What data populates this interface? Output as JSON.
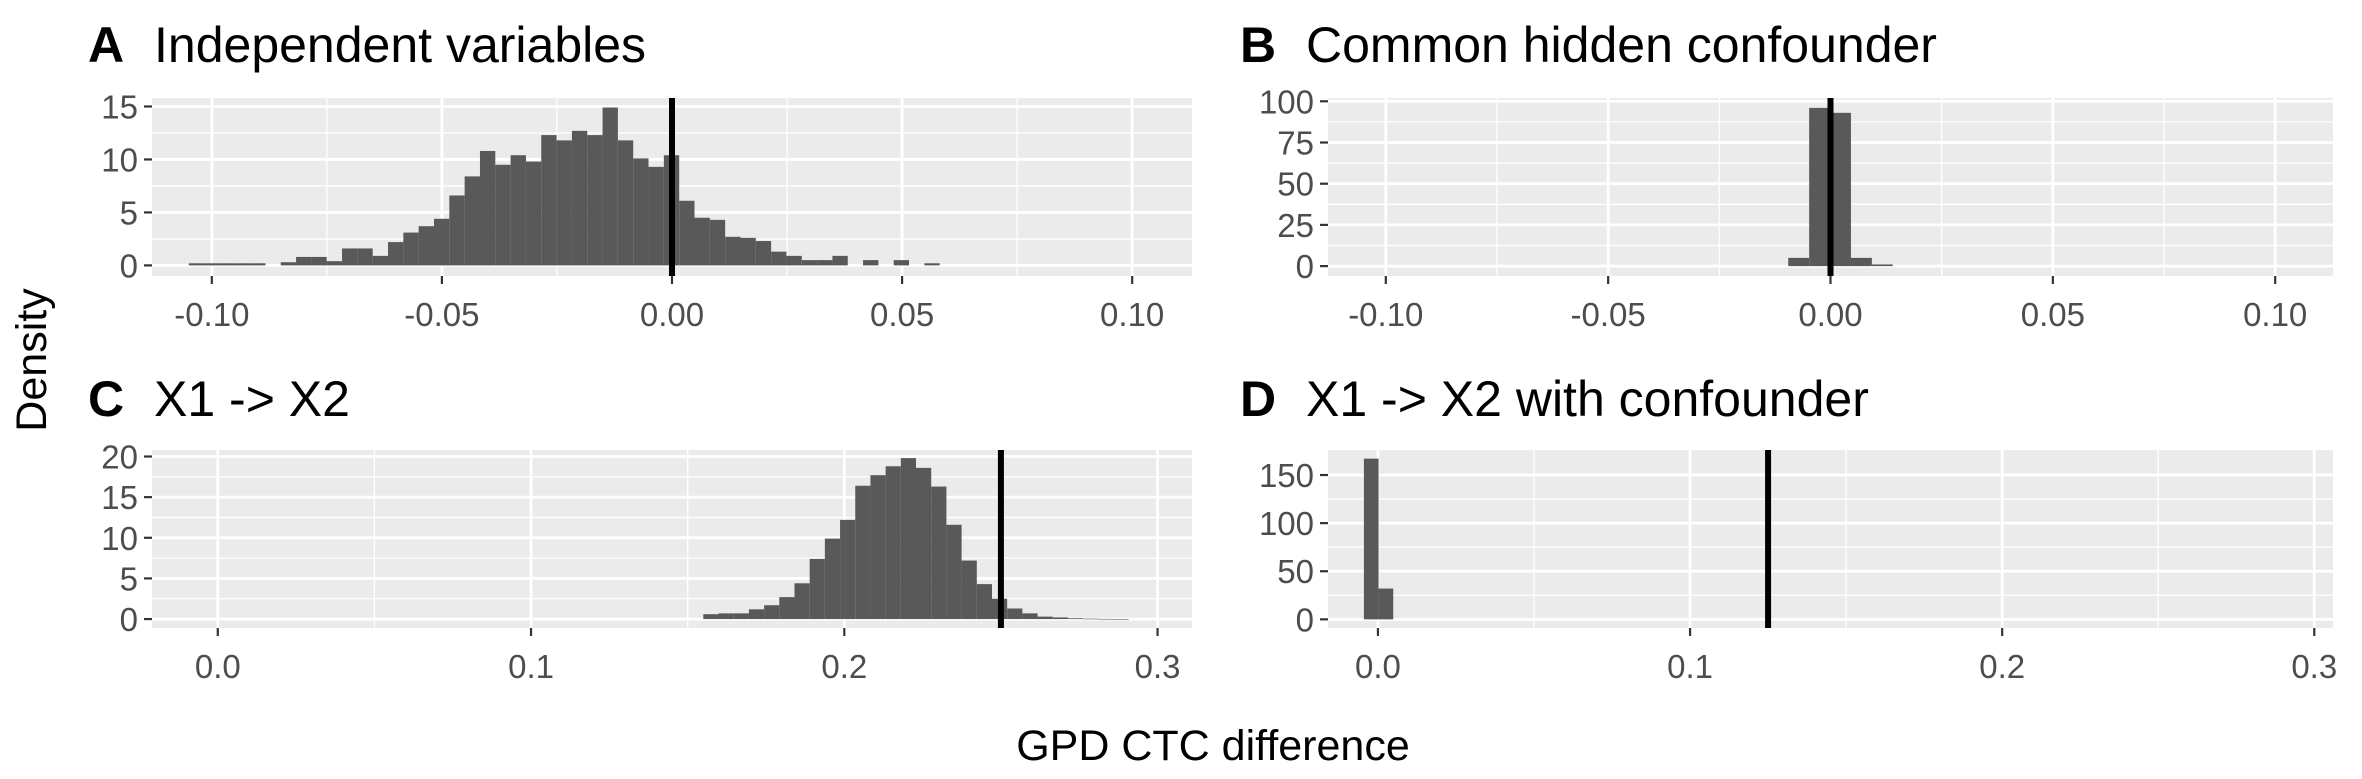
{
  "figure": {
    "ylabel": "Density",
    "xlabel": "GPD CTC difference"
  },
  "colors": {
    "panel_bg": "#ebebeb",
    "grid": "#ffffff",
    "bar": "#595959",
    "vline": "#000000",
    "tick_text": "#4d4d4d"
  },
  "chart_data": [
    {
      "panel": "A",
      "title": "Independent variables",
      "type": "bar",
      "xlim": [
        -0.113,
        0.113
      ],
      "ylim": [
        -1.0,
        15.8
      ],
      "xticks": [
        -0.1,
        -0.05,
        0.0,
        0.05,
        0.1
      ],
      "xtick_labels": [
        "-0.10",
        "-0.05",
        "0.00",
        "0.05",
        "0.10"
      ],
      "yticks": [
        0,
        5,
        10,
        15
      ],
      "ytick_labels": [
        "0",
        "5",
        "10",
        "15"
      ],
      "bin_start": -0.105,
      "bin_width": 0.00333,
      "values": [
        0.2,
        0.2,
        0.2,
        0.2,
        0.2,
        0,
        0.3,
        0.8,
        0.8,
        0.4,
        1.6,
        1.6,
        0.9,
        2.2,
        3.1,
        3.7,
        4.4,
        6.6,
        8.4,
        10.8,
        9.5,
        10.4,
        9.8,
        12.3,
        11.8,
        12.7,
        12.3,
        14.9,
        11.8,
        10.1,
        9.3,
        10.4,
        6.1,
        4.5,
        4.3,
        2.7,
        2.6,
        2.3,
        1.3,
        0.9,
        0.5,
        0.5,
        0.9,
        0,
        0.5,
        0,
        0.5,
        0,
        0.2,
        0
      ],
      "vline": 0.0
    },
    {
      "panel": "B",
      "title": "Common hidden confounder",
      "type": "bar",
      "xlim": [
        -0.113,
        0.113
      ],
      "ylim": [
        -6.0,
        102.0
      ],
      "xticks": [
        -0.1,
        -0.05,
        0.0,
        0.05,
        0.1
      ],
      "xtick_labels": [
        "-0.10",
        "-0.05",
        "0.00",
        "0.05",
        "0.10"
      ],
      "yticks": [
        0,
        25,
        50,
        75,
        100
      ],
      "ytick_labels": [
        "0",
        "25",
        "50",
        "75",
        "100"
      ],
      "bin_start": -0.0095,
      "bin_width": 0.0047,
      "values": [
        5,
        96,
        93,
        5,
        1
      ],
      "vline": 0.0
    },
    {
      "panel": "C",
      "title": "X1 -> X2",
      "type": "bar",
      "xlim": [
        -0.021,
        0.311
      ],
      "ylim": [
        -1.1,
        20.8
      ],
      "xticks": [
        0.0,
        0.1,
        0.2,
        0.3
      ],
      "xtick_labels": [
        "0.0",
        "0.1",
        "0.2",
        "0.3"
      ],
      "yticks": [
        0,
        5,
        10,
        15,
        20
      ],
      "ytick_labels": [
        "0",
        "5",
        "10",
        "15",
        "20"
      ],
      "bin_start": 0.155,
      "bin_width": 0.00485,
      "values": [
        0.6,
        0.7,
        0.7,
        1.2,
        1.7,
        2.7,
        4.4,
        7.4,
        9.9,
        12.2,
        16.4,
        17.7,
        18.8,
        19.8,
        18.6,
        16.3,
        11.6,
        7.2,
        4.3,
        2.5,
        1.3,
        0.7,
        0.3,
        0.2,
        0.1,
        0.05,
        0.02,
        0.01
      ],
      "vline": 0.25
    },
    {
      "panel": "D",
      "title": "X1 -> X2 with confounder",
      "type": "bar",
      "xlim": [
        -0.016,
        0.306
      ],
      "ylim": [
        -9.0,
        176.0
      ],
      "xticks": [
        0.0,
        0.1,
        0.2,
        0.3
      ],
      "xtick_labels": [
        "0.0",
        "0.1",
        "0.2",
        "0.3"
      ],
      "yticks": [
        0,
        50,
        100,
        150
      ],
      "ytick_labels": [
        "0",
        "50",
        "100",
        "150"
      ],
      "bin_start": -0.0045,
      "bin_width": 0.0047,
      "values": [
        167,
        32
      ],
      "vline": 0.125
    }
  ]
}
